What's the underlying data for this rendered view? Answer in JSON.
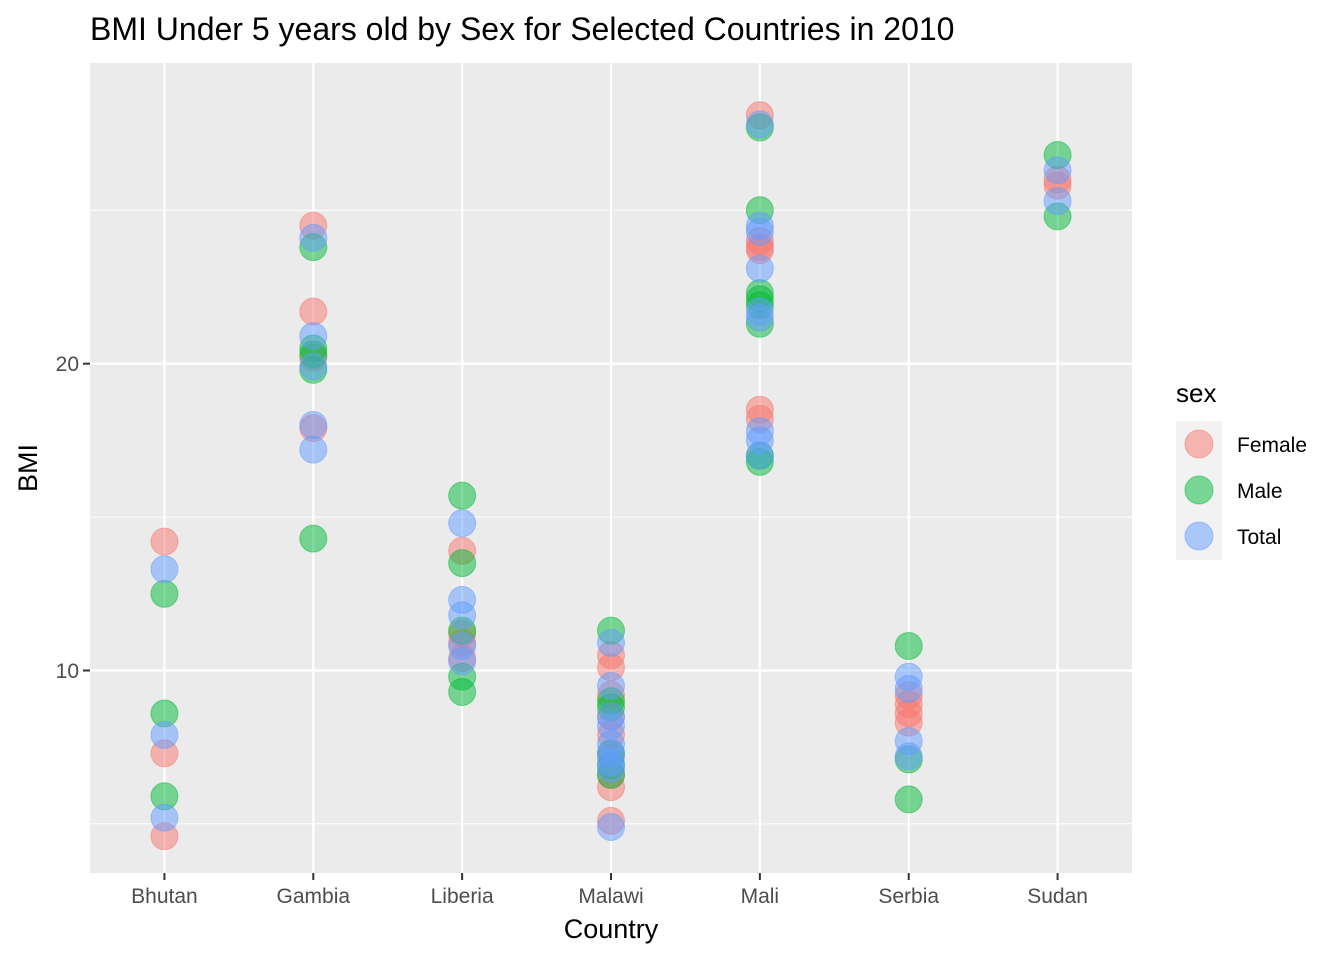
{
  "chart_data": {
    "type": "scatter",
    "title": "BMI Under 5 years old by Sex for Selected Countries in 2010",
    "xlabel": "Country",
    "ylabel": "BMI",
    "categories": [
      "Bhutan",
      "Gambia",
      "Liberia",
      "Malawi",
      "Mali",
      "Serbia",
      "Sudan"
    ],
    "ylim": [
      3.4,
      29.8
    ],
    "yticks": [
      10,
      20
    ],
    "grid": true,
    "legend": {
      "title": "sex",
      "position": "right"
    },
    "series": [
      {
        "name": "Female",
        "color": "#F8766D",
        "points": [
          [
            "Bhutan",
            14.2
          ],
          [
            "Bhutan",
            7.3
          ],
          [
            "Bhutan",
            4.6
          ],
          [
            "Gambia",
            24.5
          ],
          [
            "Gambia",
            21.7
          ],
          [
            "Gambia",
            20.2
          ],
          [
            "Gambia",
            17.9
          ],
          [
            "Liberia",
            13.9
          ],
          [
            "Liberia",
            11.2
          ],
          [
            "Liberia",
            10.9
          ],
          [
            "Liberia",
            10.4
          ],
          [
            "Malawi",
            10.5
          ],
          [
            "Malawi",
            10.1
          ],
          [
            "Malawi",
            9.2
          ],
          [
            "Malawi",
            8.5
          ],
          [
            "Malawi",
            7.9
          ],
          [
            "Malawi",
            7.2
          ],
          [
            "Malawi",
            6.6
          ],
          [
            "Malawi",
            6.2
          ],
          [
            "Malawi",
            5.1
          ],
          [
            "Mali",
            28.1
          ],
          [
            "Mali",
            24.0
          ],
          [
            "Mali",
            23.8
          ],
          [
            "Mali",
            23.7
          ],
          [
            "Mali",
            18.5
          ],
          [
            "Mali",
            18.2
          ],
          [
            "Serbia",
            9.2
          ],
          [
            "Serbia",
            8.9
          ],
          [
            "Serbia",
            8.6
          ],
          [
            "Serbia",
            8.3
          ],
          [
            "Sudan",
            26.0
          ],
          [
            "Sudan",
            25.8
          ]
        ]
      },
      {
        "name": "Male",
        "color": "#00BA38",
        "points": [
          [
            "Bhutan",
            12.5
          ],
          [
            "Bhutan",
            8.6
          ],
          [
            "Bhutan",
            5.9
          ],
          [
            "Gambia",
            23.8
          ],
          [
            "Gambia",
            20.5
          ],
          [
            "Gambia",
            20.3
          ],
          [
            "Gambia",
            19.8
          ],
          [
            "Gambia",
            14.3
          ],
          [
            "Liberia",
            15.7
          ],
          [
            "Liberia",
            13.5
          ],
          [
            "Liberia",
            11.3
          ],
          [
            "Liberia",
            9.8
          ],
          [
            "Liberia",
            9.3
          ],
          [
            "Malawi",
            11.3
          ],
          [
            "Malawi",
            9.0
          ],
          [
            "Malawi",
            8.8
          ],
          [
            "Malawi",
            7.3
          ],
          [
            "Malawi",
            6.9
          ],
          [
            "Malawi",
            6.6
          ],
          [
            "Mali",
            27.7
          ],
          [
            "Mali",
            25.0
          ],
          [
            "Mali",
            22.3
          ],
          [
            "Mali",
            22.1
          ],
          [
            "Mali",
            21.9
          ],
          [
            "Mali",
            21.3
          ],
          [
            "Mali",
            17.0
          ],
          [
            "Mali",
            16.8
          ],
          [
            "Serbia",
            10.8
          ],
          [
            "Serbia",
            7.1
          ],
          [
            "Serbia",
            5.8
          ],
          [
            "Sudan",
            26.8
          ],
          [
            "Sudan",
            24.8
          ]
        ]
      },
      {
        "name": "Total",
        "color": "#619CFF",
        "points": [
          [
            "Bhutan",
            13.3
          ],
          [
            "Bhutan",
            7.9
          ],
          [
            "Bhutan",
            5.2
          ],
          [
            "Gambia",
            24.1
          ],
          [
            "Gambia",
            20.9
          ],
          [
            "Gambia",
            19.9
          ],
          [
            "Gambia",
            18.0
          ],
          [
            "Gambia",
            17.2
          ],
          [
            "Liberia",
            14.8
          ],
          [
            "Liberia",
            12.3
          ],
          [
            "Liberia",
            11.8
          ],
          [
            "Liberia",
            10.8
          ],
          [
            "Liberia",
            10.3
          ],
          [
            "Malawi",
            10.9
          ],
          [
            "Malawi",
            9.5
          ],
          [
            "Malawi",
            8.5
          ],
          [
            "Malawi",
            8.2
          ],
          [
            "Malawi",
            7.6
          ],
          [
            "Malawi",
            7.3
          ],
          [
            "Malawi",
            7.0
          ],
          [
            "Malawi",
            6.8
          ],
          [
            "Malawi",
            4.9
          ],
          [
            "Mali",
            27.8
          ],
          [
            "Mali",
            24.5
          ],
          [
            "Mali",
            24.3
          ],
          [
            "Mali",
            23.1
          ],
          [
            "Mali",
            21.7
          ],
          [
            "Mali",
            21.5
          ],
          [
            "Mali",
            17.8
          ],
          [
            "Mali",
            17.5
          ],
          [
            "Mali",
            17.0
          ],
          [
            "Serbia",
            9.8
          ],
          [
            "Serbia",
            9.4
          ],
          [
            "Serbia",
            7.7
          ],
          [
            "Serbia",
            7.2
          ],
          [
            "Sudan",
            26.3
          ],
          [
            "Sudan",
            25.3
          ]
        ]
      }
    ]
  }
}
